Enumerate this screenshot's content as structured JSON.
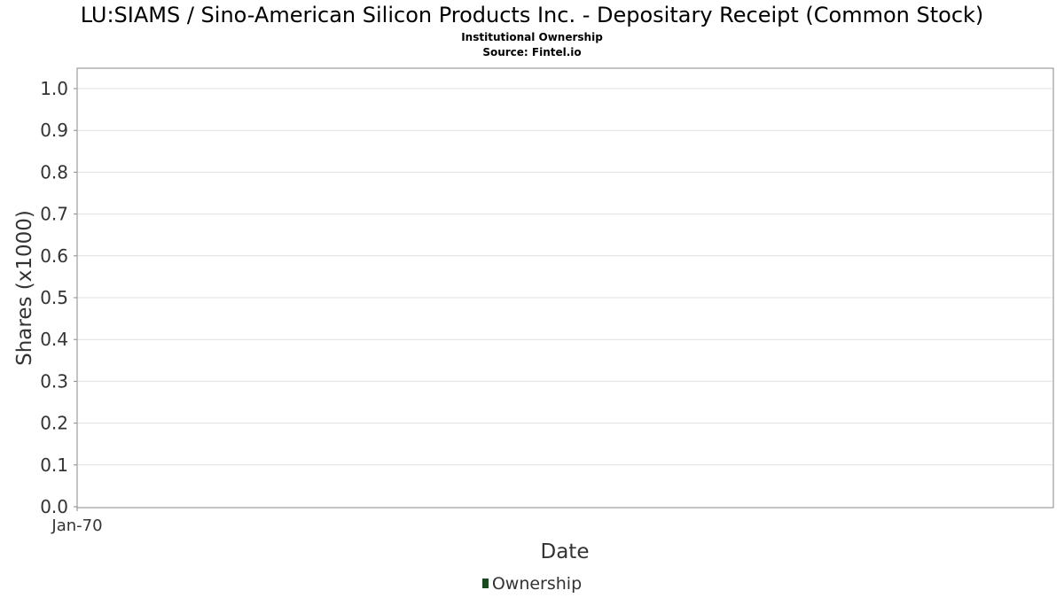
{
  "title": "LU:SIAMS / Sino-American Silicon Products Inc. - Depositary Receipt (Common Stock)",
  "subtitle": "Institutional Ownership",
  "source": "Source: Fintel.io",
  "colors": {
    "series": "#1a4a1f",
    "grid": "#e0e0e0",
    "frame": "#888888",
    "text": "#333333"
  },
  "chart_data": {
    "type": "area",
    "title": "LU:SIAMS / Sino-American Silicon Products Inc. - Depositary Receipt (Common Stock)",
    "subtitle": "Institutional Ownership",
    "xlabel": "Date",
    "ylabel": "Shares (x1000)",
    "ylim": [
      0,
      1.0
    ],
    "yticks": [
      0.0,
      0.1,
      0.2,
      0.3,
      0.4,
      0.5,
      0.6,
      0.7,
      0.8,
      0.9,
      1.0
    ],
    "ytick_labels": [
      "0.0",
      "0.1",
      "0.2",
      "0.3",
      "0.4",
      "0.5",
      "0.6",
      "0.7",
      "0.8",
      "0.9",
      "1.0"
    ],
    "xtick_labels": [
      "Jan-70"
    ],
    "grid": true,
    "legend_position": "bottom-center",
    "series": [
      {
        "name": "Ownership",
        "color": "#1a4a1f",
        "x": [],
        "values": []
      }
    ]
  }
}
